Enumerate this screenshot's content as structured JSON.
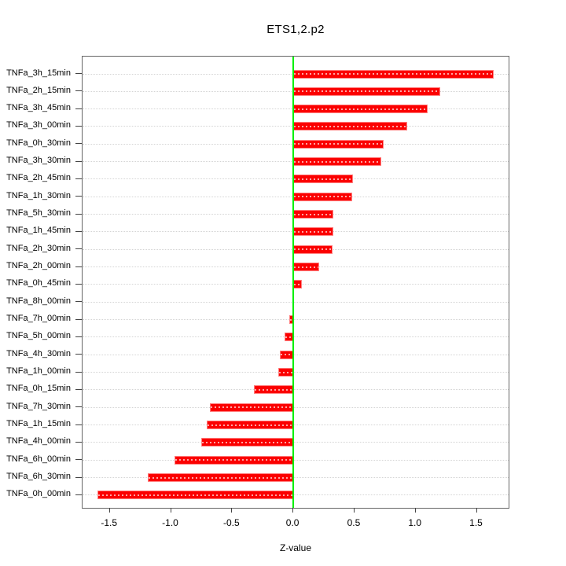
{
  "chart_data": {
    "type": "bar",
    "orientation": "horizontal",
    "title": "ETS1,2.p2",
    "xlabel": "Z-value",
    "ylabel": "",
    "legend": "none",
    "grid": "dotted horizontal line per category",
    "categories": [
      "TNFa_3h_15min",
      "TNFa_2h_15min",
      "TNFa_3h_45min",
      "TNFa_3h_00min",
      "TNFa_0h_30min",
      "TNFa_3h_30min",
      "TNFa_2h_45min",
      "TNFa_1h_30min",
      "TNFa_5h_30min",
      "TNFa_1h_45min",
      "TNFa_2h_30min",
      "TNFa_2h_00min",
      "TNFa_0h_45min",
      "TNFa_8h_00min",
      "TNFa_7h_00min",
      "TNFa_5h_00min",
      "TNFa_4h_30min",
      "TNFa_1h_00min",
      "TNFa_0h_15min",
      "TNFa_7h_30min",
      "TNFa_1h_15min",
      "TNFa_4h_00min",
      "TNFa_6h_00min",
      "TNFa_6h_30min",
      "TNFa_0h_00min"
    ],
    "values": [
      1.64,
      1.2,
      1.1,
      0.93,
      0.74,
      0.72,
      0.49,
      0.48,
      0.33,
      0.33,
      0.32,
      0.21,
      0.07,
      0.0,
      -0.03,
      -0.07,
      -0.11,
      -0.12,
      -0.32,
      -0.68,
      -0.71,
      -0.75,
      -0.97,
      -1.19,
      -1.6
    ],
    "x_ticks": [
      -1.5,
      -1.0,
      -0.5,
      0.0,
      0.5,
      1.0,
      1.5
    ],
    "x_tick_labels": [
      "-1.5",
      "-1.0",
      "-0.5",
      "0.0",
      "0.5",
      "1.0",
      "1.5"
    ],
    "xlim": [
      -1.723,
      1.773
    ],
    "bar_color": "#FB0000",
    "bar_border_color": "#FF8080",
    "zero_line_color": "#00F000",
    "grid_color": "#D4D4D4",
    "axis_color": "#666666",
    "text_color": "#000000"
  }
}
